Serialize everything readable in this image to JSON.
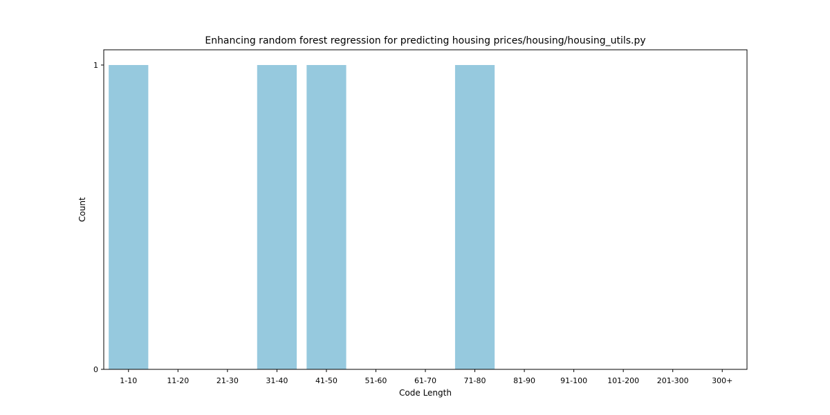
{
  "chart_data": {
    "type": "bar",
    "title": "Enhancing random forest regression for predicting housing prices/housing/housing_utils.py",
    "xlabel": "Code Length",
    "ylabel": "Count",
    "categories": [
      "1-10",
      "11-20",
      "21-30",
      "31-40",
      "41-50",
      "51-60",
      "61-70",
      "71-80",
      "81-90",
      "91-100",
      "101-200",
      "201-300",
      "300+"
    ],
    "values": [
      1,
      0,
      0,
      1,
      1,
      0,
      0,
      1,
      0,
      0,
      0,
      0,
      0
    ],
    "yticks": [
      "0",
      "1"
    ],
    "ylim": [
      0,
      1.05
    ],
    "grid": false,
    "bar_color": "#96c9de"
  }
}
